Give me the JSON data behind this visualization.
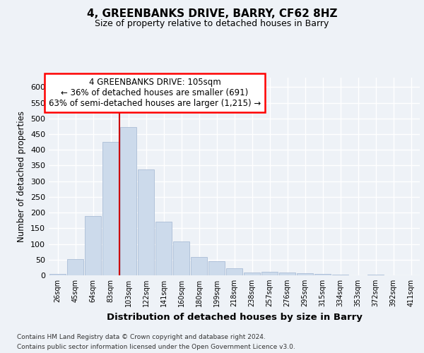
{
  "title": "4, GREENBANKS DRIVE, BARRY, CF62 8HZ",
  "subtitle": "Size of property relative to detached houses in Barry",
  "xlabel": "Distribution of detached houses by size in Barry",
  "ylabel": "Number of detached properties",
  "footnote1": "Contains HM Land Registry data © Crown copyright and database right 2024.",
  "footnote2": "Contains public sector information licensed under the Open Government Licence v3.0.",
  "annotation_line1": "4 GREENBANKS DRIVE: 105sqm",
  "annotation_line2": "← 36% of detached houses are smaller (691)",
  "annotation_line3": "63% of semi-detached houses are larger (1,215) →",
  "bar_color": "#ccdaeb",
  "bar_edge_color": "#aabdd6",
  "categories": [
    "26sqm",
    "45sqm",
    "64sqm",
    "83sqm",
    "103sqm",
    "122sqm",
    "141sqm",
    "160sqm",
    "180sqm",
    "199sqm",
    "218sqm",
    "238sqm",
    "257sqm",
    "276sqm",
    "295sqm",
    "315sqm",
    "334sqm",
    "353sqm",
    "372sqm",
    "392sqm",
    "411sqm"
  ],
  "values": [
    5,
    51,
    188,
    425,
    472,
    338,
    172,
    108,
    59,
    45,
    22,
    8,
    11,
    10,
    6,
    5,
    2,
    1,
    2,
    1,
    1
  ],
  "ylim": [
    0,
    630
  ],
  "yticks": [
    0,
    50,
    100,
    150,
    200,
    250,
    300,
    350,
    400,
    450,
    500,
    550,
    600
  ],
  "bg_color": "#eef2f7",
  "grid_color": "#ffffff",
  "property_bar_index": 4,
  "red_line_color": "#cc0000"
}
